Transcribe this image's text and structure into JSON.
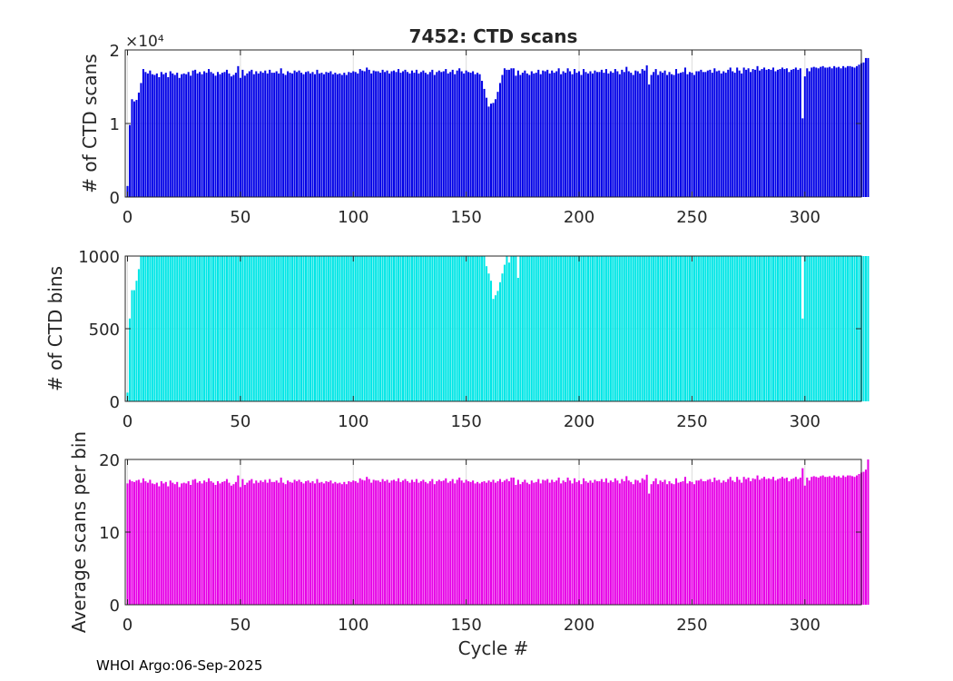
{
  "footer": "WHOI Argo:06-Sep-2025",
  "chart_data": [
    {
      "type": "bar",
      "title": "7452: CTD scans",
      "xlabel": "",
      "ylabel": "# of CTD scans",
      "xlim": [
        -1,
        325
      ],
      "ylim": [
        0,
        20000
      ],
      "xticks": [
        "0",
        "50",
        "100",
        "150",
        "200",
        "250",
        "300"
      ],
      "yticks": [
        "0",
        "1",
        "2"
      ],
      "yexponent": "×10⁴",
      "color": "#0000e6",
      "series": [
        {
          "name": "scans",
          "x0": 0,
          "values": [
            1500,
            9800,
            13300,
            13000,
            13200,
            14200,
            15500,
            17400,
            17000,
            16800,
            17200,
            16700,
            16600,
            16800,
            16300,
            17000,
            16700,
            16900,
            16300,
            17100,
            16800,
            16600,
            16900,
            16200,
            16700,
            16800,
            16700,
            17000,
            16500,
            17200,
            17300,
            16800,
            17000,
            16700,
            17100,
            16900,
            17400,
            17000,
            16800,
            16500,
            17000,
            16700,
            16900,
            17000,
            17300,
            16800,
            16400,
            16600,
            16900,
            17800,
            16200,
            17300,
            16500,
            16800,
            17100,
            17300,
            16700,
            17100,
            16800,
            17100,
            16900,
            17200,
            16800,
            17300,
            16900,
            16900,
            17100,
            16800,
            17500,
            16800,
            16600,
            17100,
            16900,
            16800,
            17200,
            17000,
            17200,
            16900,
            16700,
            17000,
            17100,
            16800,
            17000,
            16700,
            17300,
            16800,
            16900,
            16700,
            17000,
            16900,
            17100,
            16700,
            16900,
            16700,
            16800,
            16600,
            16900,
            16600,
            17000,
            16900,
            17100,
            17000,
            16800,
            17400,
            17200,
            17100,
            17600,
            17300,
            16800,
            17200,
            17100,
            17100,
            16900,
            17300,
            17000,
            17200,
            16800,
            17100,
            17200,
            17000,
            17400,
            16900,
            17100,
            17300,
            17000,
            16800,
            17200,
            16900,
            17300,
            16800,
            17000,
            17200,
            16900,
            16700,
            17000,
            17300,
            16600,
            17000,
            17200,
            17000,
            17100,
            17400,
            16800,
            17000,
            17300,
            16700,
            17200,
            17500,
            17100,
            16800,
            17200,
            17000,
            16900,
            17100,
            16700,
            16900,
            16700,
            15800,
            14700,
            13500,
            12300,
            12700,
            12800,
            13300,
            14300,
            15500,
            16600,
            17500,
            17300,
            17300,
            17500,
            17500,
            16500,
            17200,
            16600,
            16900,
            17200,
            16800,
            16600,
            17100,
            16800,
            16900,
            17300,
            16700,
            17200,
            17100,
            17300,
            16800,
            17200,
            16900,
            17100,
            17500,
            16700,
            17100,
            16900,
            17500,
            17100,
            16700,
            17400,
            16900,
            17100,
            16600,
            17400,
            17000,
            16800,
            17100,
            16800,
            17200,
            17000,
            17000,
            17300,
            16900,
            17400,
            16800,
            17100,
            16900,
            17400,
            17100,
            16700,
            17300,
            17000,
            17700,
            17100,
            16900,
            16600,
            17200,
            17100,
            16800,
            17400,
            17200,
            17900,
            15300,
            16600,
            17000,
            17400,
            16600,
            17100,
            16900,
            17200,
            16600,
            17000,
            16700,
            16600,
            17400,
            16800,
            16900,
            17000,
            17600,
            16700,
            17000,
            16900,
            16600,
            17100,
            17100,
            17300,
            17000,
            17000,
            17200,
            17300,
            16900,
            17500,
            17100,
            17200,
            16800,
            17100,
            16900,
            17300,
            17600,
            17100,
            16900,
            17600,
            17200,
            16800,
            17600,
            17300,
            17500,
            17000,
            17400,
            17300,
            17800,
            17200,
            17400,
            17600,
            17300,
            17400,
            17300,
            17600,
            17100,
            17300,
            17400,
            17600,
            17400,
            17500,
            17000,
            17300,
            17400,
            17600,
            17300,
            17500,
            10700,
            16400,
            17500,
            17100,
            17600,
            17700,
            17600,
            17500,
            17700,
            17800,
            17600,
            17600,
            17700,
            17500,
            17800,
            17600,
            17700,
            17500,
            17800,
            17600,
            17800,
            17800,
            17700,
            17600,
            17800,
            18000,
            18200,
            18300,
            18900,
            18900
          ]
        }
      ]
    },
    {
      "type": "bar",
      "title": "",
      "xlabel": "",
      "ylabel": "# of CTD bins",
      "xlim": [
        -1,
        325
      ],
      "ylim": [
        0,
        1000
      ],
      "xticks": [
        "0",
        "50",
        "100",
        "150",
        "200",
        "250",
        "300"
      ],
      "yticks": [
        "0",
        "500",
        "1000"
      ],
      "color": "#00e6e6",
      "series": [
        {
          "name": "bins",
          "x0": 0,
          "values": [
            60,
            570,
            765,
            765,
            830,
            910,
            1000,
            1000,
            1000,
            1000,
            1000,
            1000,
            1000,
            1000,
            1000,
            1000,
            1000,
            1000,
            1000,
            1000,
            1000,
            1000,
            1000,
            1000,
            1000,
            1000,
            1000,
            1000,
            1000,
            1000,
            1000,
            1000,
            1000,
            1000,
            1000,
            1000,
            1000,
            1000,
            1000,
            1000,
            1000,
            1000,
            1000,
            1000,
            1000,
            1000,
            1000,
            1000,
            1000,
            1000,
            1000,
            1000,
            1000,
            1000,
            1000,
            1000,
            1000,
            1000,
            1000,
            1000,
            1000,
            1000,
            1000,
            1000,
            1000,
            1000,
            1000,
            1000,
            1000,
            1000,
            1000,
            1000,
            1000,
            1000,
            1000,
            1000,
            1000,
            1000,
            1000,
            1000,
            1000,
            1000,
            1000,
            1000,
            1000,
            1000,
            1000,
            1000,
            1000,
            1000,
            1000,
            1000,
            1000,
            1000,
            1000,
            1000,
            1000,
            1000,
            1000,
            1000,
            1000,
            1000,
            1000,
            1000,
            1000,
            1000,
            1000,
            1000,
            1000,
            1000,
            1000,
            1000,
            1000,
            1000,
            1000,
            1000,
            1000,
            1000,
            1000,
            1000,
            1000,
            1000,
            1000,
            1000,
            1000,
            1000,
            1000,
            1000,
            1000,
            1000,
            1000,
            1000,
            1000,
            1000,
            1000,
            1000,
            1000,
            1000,
            1000,
            1000,
            1000,
            1000,
            1000,
            1000,
            1000,
            1000,
            1000,
            1000,
            1000,
            1000,
            1000,
            1000,
            1000,
            1000,
            1000,
            1000,
            1000,
            1000,
            1000,
            930,
            880,
            830,
            705,
            730,
            760,
            820,
            880,
            940,
            1000,
            955,
            1000,
            1000,
            1000,
            850,
            1000,
            1000,
            1000,
            1000,
            1000,
            1000,
            1000,
            1000,
            1000,
            1000,
            1000,
            1000,
            1000,
            1000,
            1000,
            1000,
            1000,
            1000,
            1000,
            1000,
            1000,
            1000,
            1000,
            1000,
            1000,
            1000,
            1000,
            1000,
            1000,
            1000,
            1000,
            1000,
            1000,
            1000,
            1000,
            1000,
            1000,
            1000,
            1000,
            1000,
            1000,
            1000,
            1000,
            1000,
            1000,
            1000,
            1000,
            1000,
            1000,
            1000,
            1000,
            1000,
            1000,
            1000,
            1000,
            1000,
            1000,
            1000,
            1000,
            1000,
            1000,
            1000,
            1000,
            1000,
            1000,
            1000,
            1000,
            1000,
            1000,
            1000,
            1000,
            1000,
            1000,
            1000,
            1000,
            1000,
            1000,
            1000,
            1000,
            1000,
            1000,
            1000,
            1000,
            1000,
            1000,
            1000,
            1000,
            1000,
            1000,
            1000,
            1000,
            1000,
            1000,
            1000,
            1000,
            1000,
            1000,
            1000,
            1000,
            1000,
            1000,
            1000,
            1000,
            1000,
            1000,
            1000,
            1000,
            1000,
            1000,
            1000,
            1000,
            1000,
            1000,
            1000,
            1000,
            1000,
            1000,
            1000,
            1000,
            1000,
            1000,
            1000,
            1000,
            1000,
            1000,
            570,
            1000,
            1000,
            1000,
            1000,
            1000,
            1000,
            1000,
            1000,
            1000,
            1000,
            1000,
            1000,
            1000,
            1000,
            1000,
            1000,
            1000,
            1000,
            1000,
            1000,
            1000,
            1000,
            1000,
            1000,
            1000,
            1000,
            1000,
            1000,
            1000
          ]
        }
      ]
    },
    {
      "type": "bar",
      "title": "",
      "xlabel": "Cycle #",
      "ylabel": "Average scans per bin",
      "xlim": [
        -1,
        325
      ],
      "ylim": [
        0,
        20
      ],
      "xticks": [
        "0",
        "50",
        "100",
        "150",
        "200",
        "250",
        "300"
      ],
      "yticks": [
        "0",
        "10",
        "20"
      ],
      "color": "#e600e6",
      "series": [
        {
          "name": "avg",
          "x0": 0,
          "values": [
            16.7,
            17.2,
            17.0,
            16.9,
            17.1,
            17.2,
            16.8,
            17.4,
            17.0,
            16.8,
            17.2,
            16.7,
            16.6,
            16.8,
            16.3,
            17.0,
            16.7,
            16.9,
            16.3,
            17.1,
            16.8,
            16.6,
            16.9,
            16.2,
            16.7,
            16.8,
            16.7,
            17.0,
            16.5,
            17.2,
            17.3,
            16.8,
            17.0,
            16.7,
            17.1,
            16.9,
            17.4,
            17.0,
            16.8,
            16.5,
            17.0,
            16.7,
            16.9,
            17.0,
            17.3,
            16.8,
            16.4,
            16.6,
            16.9,
            17.8,
            16.2,
            17.3,
            16.5,
            16.8,
            17.1,
            17.3,
            16.7,
            17.1,
            16.8,
            17.1,
            16.9,
            17.2,
            16.8,
            17.3,
            16.9,
            16.9,
            17.1,
            16.8,
            17.5,
            16.8,
            16.6,
            17.1,
            16.9,
            16.8,
            17.2,
            17.0,
            17.2,
            16.9,
            16.7,
            17.0,
            17.1,
            16.8,
            17.0,
            16.7,
            17.3,
            16.8,
            16.9,
            16.7,
            17.0,
            16.9,
            17.1,
            16.7,
            16.9,
            16.7,
            16.8,
            16.6,
            16.9,
            16.6,
            17.0,
            16.9,
            17.1,
            17.0,
            16.8,
            17.4,
            17.2,
            17.1,
            17.6,
            17.3,
            16.8,
            17.2,
            17.1,
            17.1,
            16.9,
            17.3,
            17.0,
            17.2,
            16.8,
            17.1,
            17.2,
            17.0,
            17.4,
            16.9,
            17.1,
            17.3,
            17.0,
            16.8,
            17.2,
            16.9,
            17.3,
            16.8,
            17.0,
            17.2,
            16.9,
            16.7,
            17.0,
            17.3,
            16.6,
            17.0,
            17.2,
            17.0,
            17.1,
            17.4,
            16.8,
            17.0,
            17.3,
            16.7,
            17.2,
            17.5,
            17.1,
            16.8,
            17.2,
            17.0,
            16.9,
            17.1,
            16.7,
            16.9,
            16.7,
            16.9,
            17.0,
            16.8,
            17.1,
            16.9,
            17.2,
            16.8,
            17.0,
            17.3,
            16.9,
            17.1,
            17.3,
            17.0,
            17.5,
            17.5,
            16.5,
            17.2,
            16.6,
            16.9,
            17.2,
            16.8,
            16.6,
            17.1,
            16.8,
            16.9,
            17.3,
            16.7,
            17.2,
            17.1,
            17.3,
            16.8,
            17.2,
            16.9,
            17.1,
            17.5,
            16.7,
            17.1,
            16.9,
            17.5,
            17.1,
            16.7,
            17.4,
            16.9,
            17.1,
            16.6,
            17.4,
            17.0,
            16.8,
            17.1,
            16.8,
            17.2,
            17.0,
            17.0,
            17.3,
            16.9,
            17.4,
            16.8,
            17.1,
            16.9,
            17.4,
            17.1,
            16.7,
            17.3,
            17.0,
            17.7,
            17.1,
            16.9,
            16.6,
            17.2,
            17.1,
            16.8,
            17.4,
            17.2,
            17.9,
            15.3,
            16.6,
            17.0,
            17.4,
            16.6,
            17.1,
            16.9,
            17.2,
            16.6,
            17.0,
            16.7,
            16.6,
            17.4,
            16.8,
            16.9,
            17.0,
            17.6,
            16.7,
            17.0,
            16.9,
            16.6,
            17.1,
            17.1,
            17.3,
            17.0,
            17.0,
            17.2,
            17.3,
            16.9,
            17.5,
            17.1,
            17.2,
            16.8,
            17.1,
            16.9,
            17.3,
            17.6,
            17.1,
            16.9,
            17.6,
            17.2,
            16.8,
            17.6,
            17.3,
            17.5,
            17.0,
            17.4,
            17.3,
            17.8,
            17.2,
            17.4,
            17.6,
            17.3,
            17.4,
            17.3,
            17.6,
            17.1,
            17.3,
            17.4,
            17.6,
            17.4,
            17.5,
            17.0,
            17.3,
            17.4,
            17.6,
            17.3,
            17.5,
            18.8,
            16.4,
            17.5,
            17.1,
            17.6,
            17.7,
            17.6,
            17.5,
            17.7,
            17.8,
            17.6,
            17.6,
            17.7,
            17.5,
            17.8,
            17.6,
            17.7,
            17.5,
            17.8,
            17.6,
            17.8,
            17.8,
            17.7,
            17.6,
            17.8,
            18.0,
            18.2,
            18.3,
            18.6,
            20.6
          ]
        }
      ]
    }
  ]
}
